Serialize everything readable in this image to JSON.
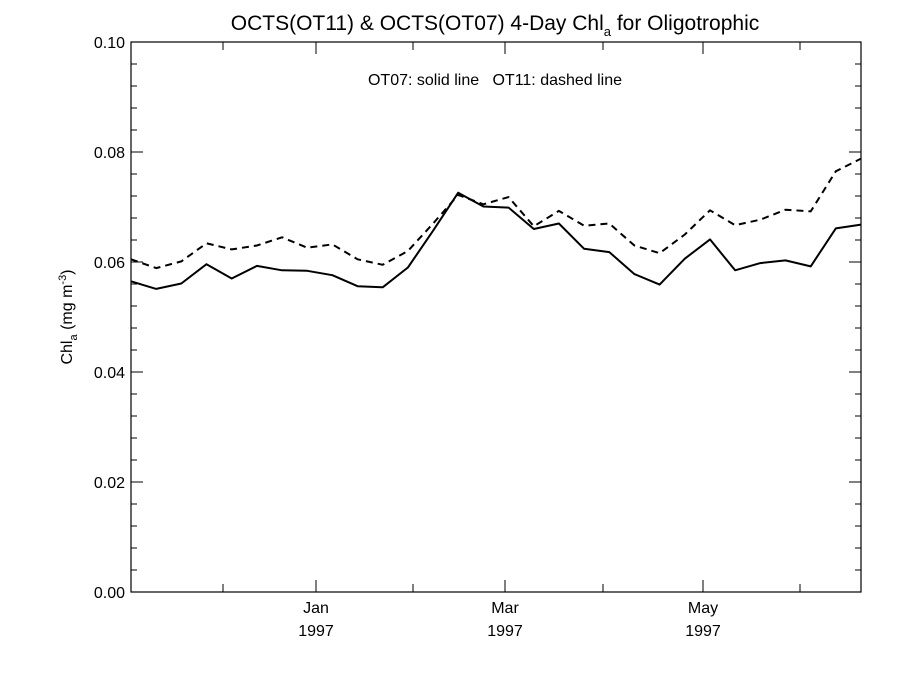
{
  "chart_data": {
    "type": "line",
    "title": {
      "main": "OCTS(OT11) & OCTS(OT07) 4-Day Chl",
      "sub": "a",
      "tail": " for Oligotrophic"
    },
    "legend_note": "OT07: solid line   OT11: dashed line",
    "ylabel": {
      "main": "Chl",
      "sub": "a",
      "unit": " (mg m",
      "sup": "-3",
      "close": ")"
    },
    "ylim": [
      0.0,
      0.1
    ],
    "yticks": [
      "0.00",
      "0.02",
      "0.04",
      "0.06",
      "0.08",
      "0.10"
    ],
    "x_major_ticks": [
      {
        "month": "Jan",
        "year": "1997"
      },
      {
        "month": "Mar",
        "year": "1997"
      },
      {
        "month": "May",
        "year": "1997"
      }
    ],
    "series": [
      {
        "name": "OT07",
        "style": "solid",
        "values": [
          0.0565,
          0.0551,
          0.0561,
          0.0596,
          0.057,
          0.0593,
          0.0585,
          0.0584,
          0.0576,
          0.0556,
          0.0554,
          0.059,
          0.0657,
          0.0726,
          0.0701,
          0.0699,
          0.066,
          0.067,
          0.0624,
          0.0618,
          0.0578,
          0.0559,
          0.0606,
          0.0641,
          0.0585,
          0.0598,
          0.0603,
          0.0592,
          0.0661,
          0.0668
        ]
      },
      {
        "name": "OT11",
        "style": "dashed",
        "values": [
          0.0605,
          0.0589,
          0.0601,
          0.0634,
          0.0623,
          0.063,
          0.0645,
          0.0626,
          0.0632,
          0.0605,
          0.0595,
          0.062,
          0.067,
          0.0722,
          0.0705,
          0.0718,
          0.0665,
          0.0693,
          0.0666,
          0.067,
          0.063,
          0.0616,
          0.065,
          0.0694,
          0.0667,
          0.0677,
          0.0695,
          0.0692,
          0.0765,
          0.0788
        ]
      }
    ]
  }
}
